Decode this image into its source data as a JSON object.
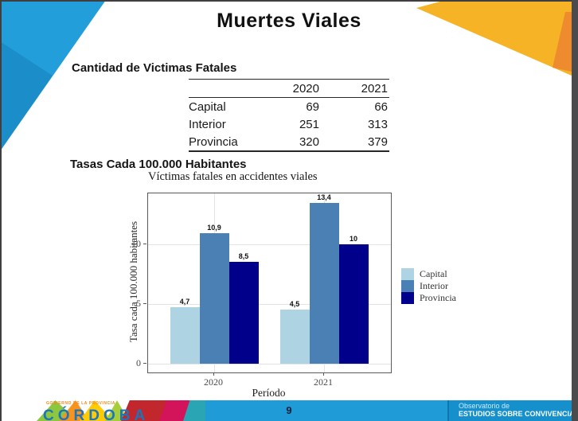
{
  "slide": {
    "title": "Muertes Viales"
  },
  "fatalities_table": {
    "heading": "Cantidad de Victimas Fatales",
    "year_columns": [
      "2020",
      "2021"
    ],
    "rows": [
      {
        "label": "Capital",
        "y2020": "69",
        "y2021": "66"
      },
      {
        "label": "Interior",
        "y2020": "251",
        "y2021": "313"
      },
      {
        "label": "Provincia",
        "y2020": "320",
        "y2021": "379"
      }
    ]
  },
  "rates_section": {
    "heading": "Tasas Cada 100.000 Habitantes"
  },
  "chart_data": {
    "type": "bar",
    "title": "Víctimas fatales en accidentes viales",
    "xlabel": "Período",
    "ylabel": "Tasa cada 100.000 habitantes",
    "categories": [
      "2020",
      "2021"
    ],
    "series": [
      {
        "name": "Capital",
        "color": "#aed4e4",
        "values": [
          4.7,
          4.5
        ],
        "labels": [
          "4,7",
          "4,5"
        ]
      },
      {
        "name": "Interior",
        "color": "#4a80b4",
        "values": [
          10.9,
          13.4
        ],
        "labels": [
          "10,9",
          "13,4"
        ]
      },
      {
        "name": "Provincia",
        "color": "#00008b",
        "values": [
          8.5,
          10
        ],
        "labels": [
          "8,5",
          "10"
        ]
      }
    ],
    "yticks": [
      0,
      5,
      10
    ],
    "ylim": [
      -0.7,
      14.3
    ],
    "grid": true,
    "legend_position": "right"
  },
  "footer": {
    "logo": {
      "government_line": "GOBIERNO DE LA PROVINCIA",
      "name": "CÓRDOBA"
    },
    "page_number": "9",
    "observatory": {
      "line1": "Observatorio de",
      "line2": "ESTUDIOS SOBRE CONVIVENCIA"
    }
  },
  "colors": {
    "corner_blue": "#229fdb",
    "corner_blue_dark": "#1b8dc9",
    "corner_yellow": "#f5b325",
    "corner_orange": "#ee8b2e",
    "footer_bar_blue": "#1f9bd7",
    "capital_bar": "#aed4e4",
    "interior_bar": "#4a80b4",
    "provincia_bar": "#00008b"
  }
}
